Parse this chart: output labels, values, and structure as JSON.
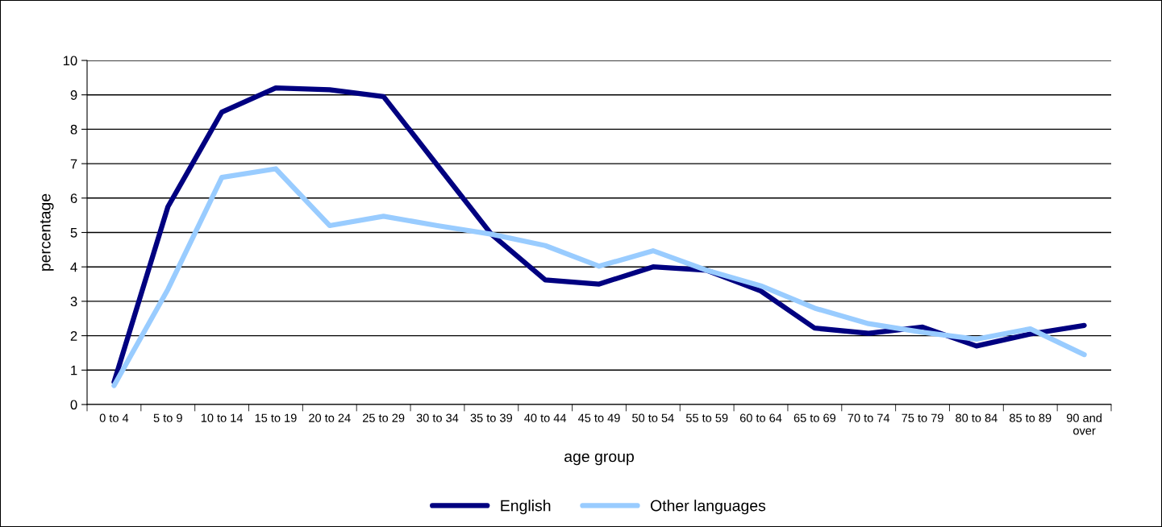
{
  "chart_data": {
    "type": "line",
    "xlabel": "age group",
    "ylabel": "percentage",
    "categories": [
      "0 to 4",
      "5 to 9",
      "10 to 14",
      "15 to 19",
      "20 to 24",
      "25 to 29",
      "30 to 34",
      "35 to 39",
      "40 to 44",
      "45 to 49",
      "50 to 54",
      "55 to 59",
      "60 to 64",
      "65 to 69",
      "70 to 74",
      "75 to 79",
      "80 to 84",
      "85 to 89",
      "90 and\nover"
    ],
    "series": [
      {
        "name": "English",
        "color": "#000080",
        "values": [
          0.65,
          5.75,
          8.5,
          9.2,
          9.15,
          8.95,
          6.95,
          4.95,
          3.62,
          3.5,
          4.0,
          3.9,
          3.3,
          2.22,
          2.07,
          2.25,
          1.7,
          2.05,
          2.3
        ]
      },
      {
        "name": "Other languages",
        "color": "#99ccff",
        "values": [
          0.55,
          3.35,
          6.6,
          6.85,
          5.2,
          5.47,
          5.2,
          4.95,
          4.62,
          4.02,
          4.47,
          3.9,
          3.45,
          2.8,
          2.35,
          2.1,
          1.9,
          2.2,
          1.45
        ]
      }
    ],
    "ylim": [
      0,
      10
    ],
    "yticks": [
      0,
      1,
      2,
      3,
      4,
      5,
      6,
      7,
      8,
      9,
      10
    ],
    "grid": "y",
    "legend": "bottom",
    "marker": "none",
    "line_style": "solid"
  }
}
